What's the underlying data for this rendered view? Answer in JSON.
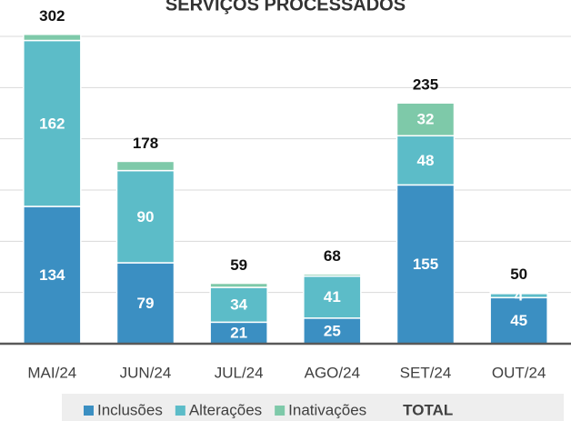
{
  "chart_data": {
    "type": "stacked_bar",
    "title": "SERVIÇOS PROCESSADOS",
    "categories": [
      "MAI/24",
      "JUN/24",
      "JUL/24",
      "AGO/24",
      "SET/24",
      "OUT/24"
    ],
    "series": [
      {
        "name": "Inclusões",
        "color": "#3b8fc2",
        "values": [
          134,
          79,
          21,
          25,
          155,
          45
        ]
      },
      {
        "name": "Alterações",
        "color": "#5cbcc8",
        "values": [
          162,
          90,
          34,
          41,
          48,
          4
        ]
      },
      {
        "name": "Inativações",
        "color": "#7ec9a9",
        "values": [
          6,
          9,
          4,
          2,
          32,
          1
        ],
        "value_labels": [
          null,
          null,
          null,
          null,
          32,
          null
        ]
      }
    ],
    "totals": {
      "name": "TOTAL",
      "values": [
        302,
        178,
        59,
        68,
        235,
        50
      ]
    },
    "ylim": [
      0,
      300
    ],
    "yticks": [
      0,
      50,
      100,
      150,
      200,
      250,
      300
    ],
    "grid": true,
    "legend": "bottom"
  }
}
